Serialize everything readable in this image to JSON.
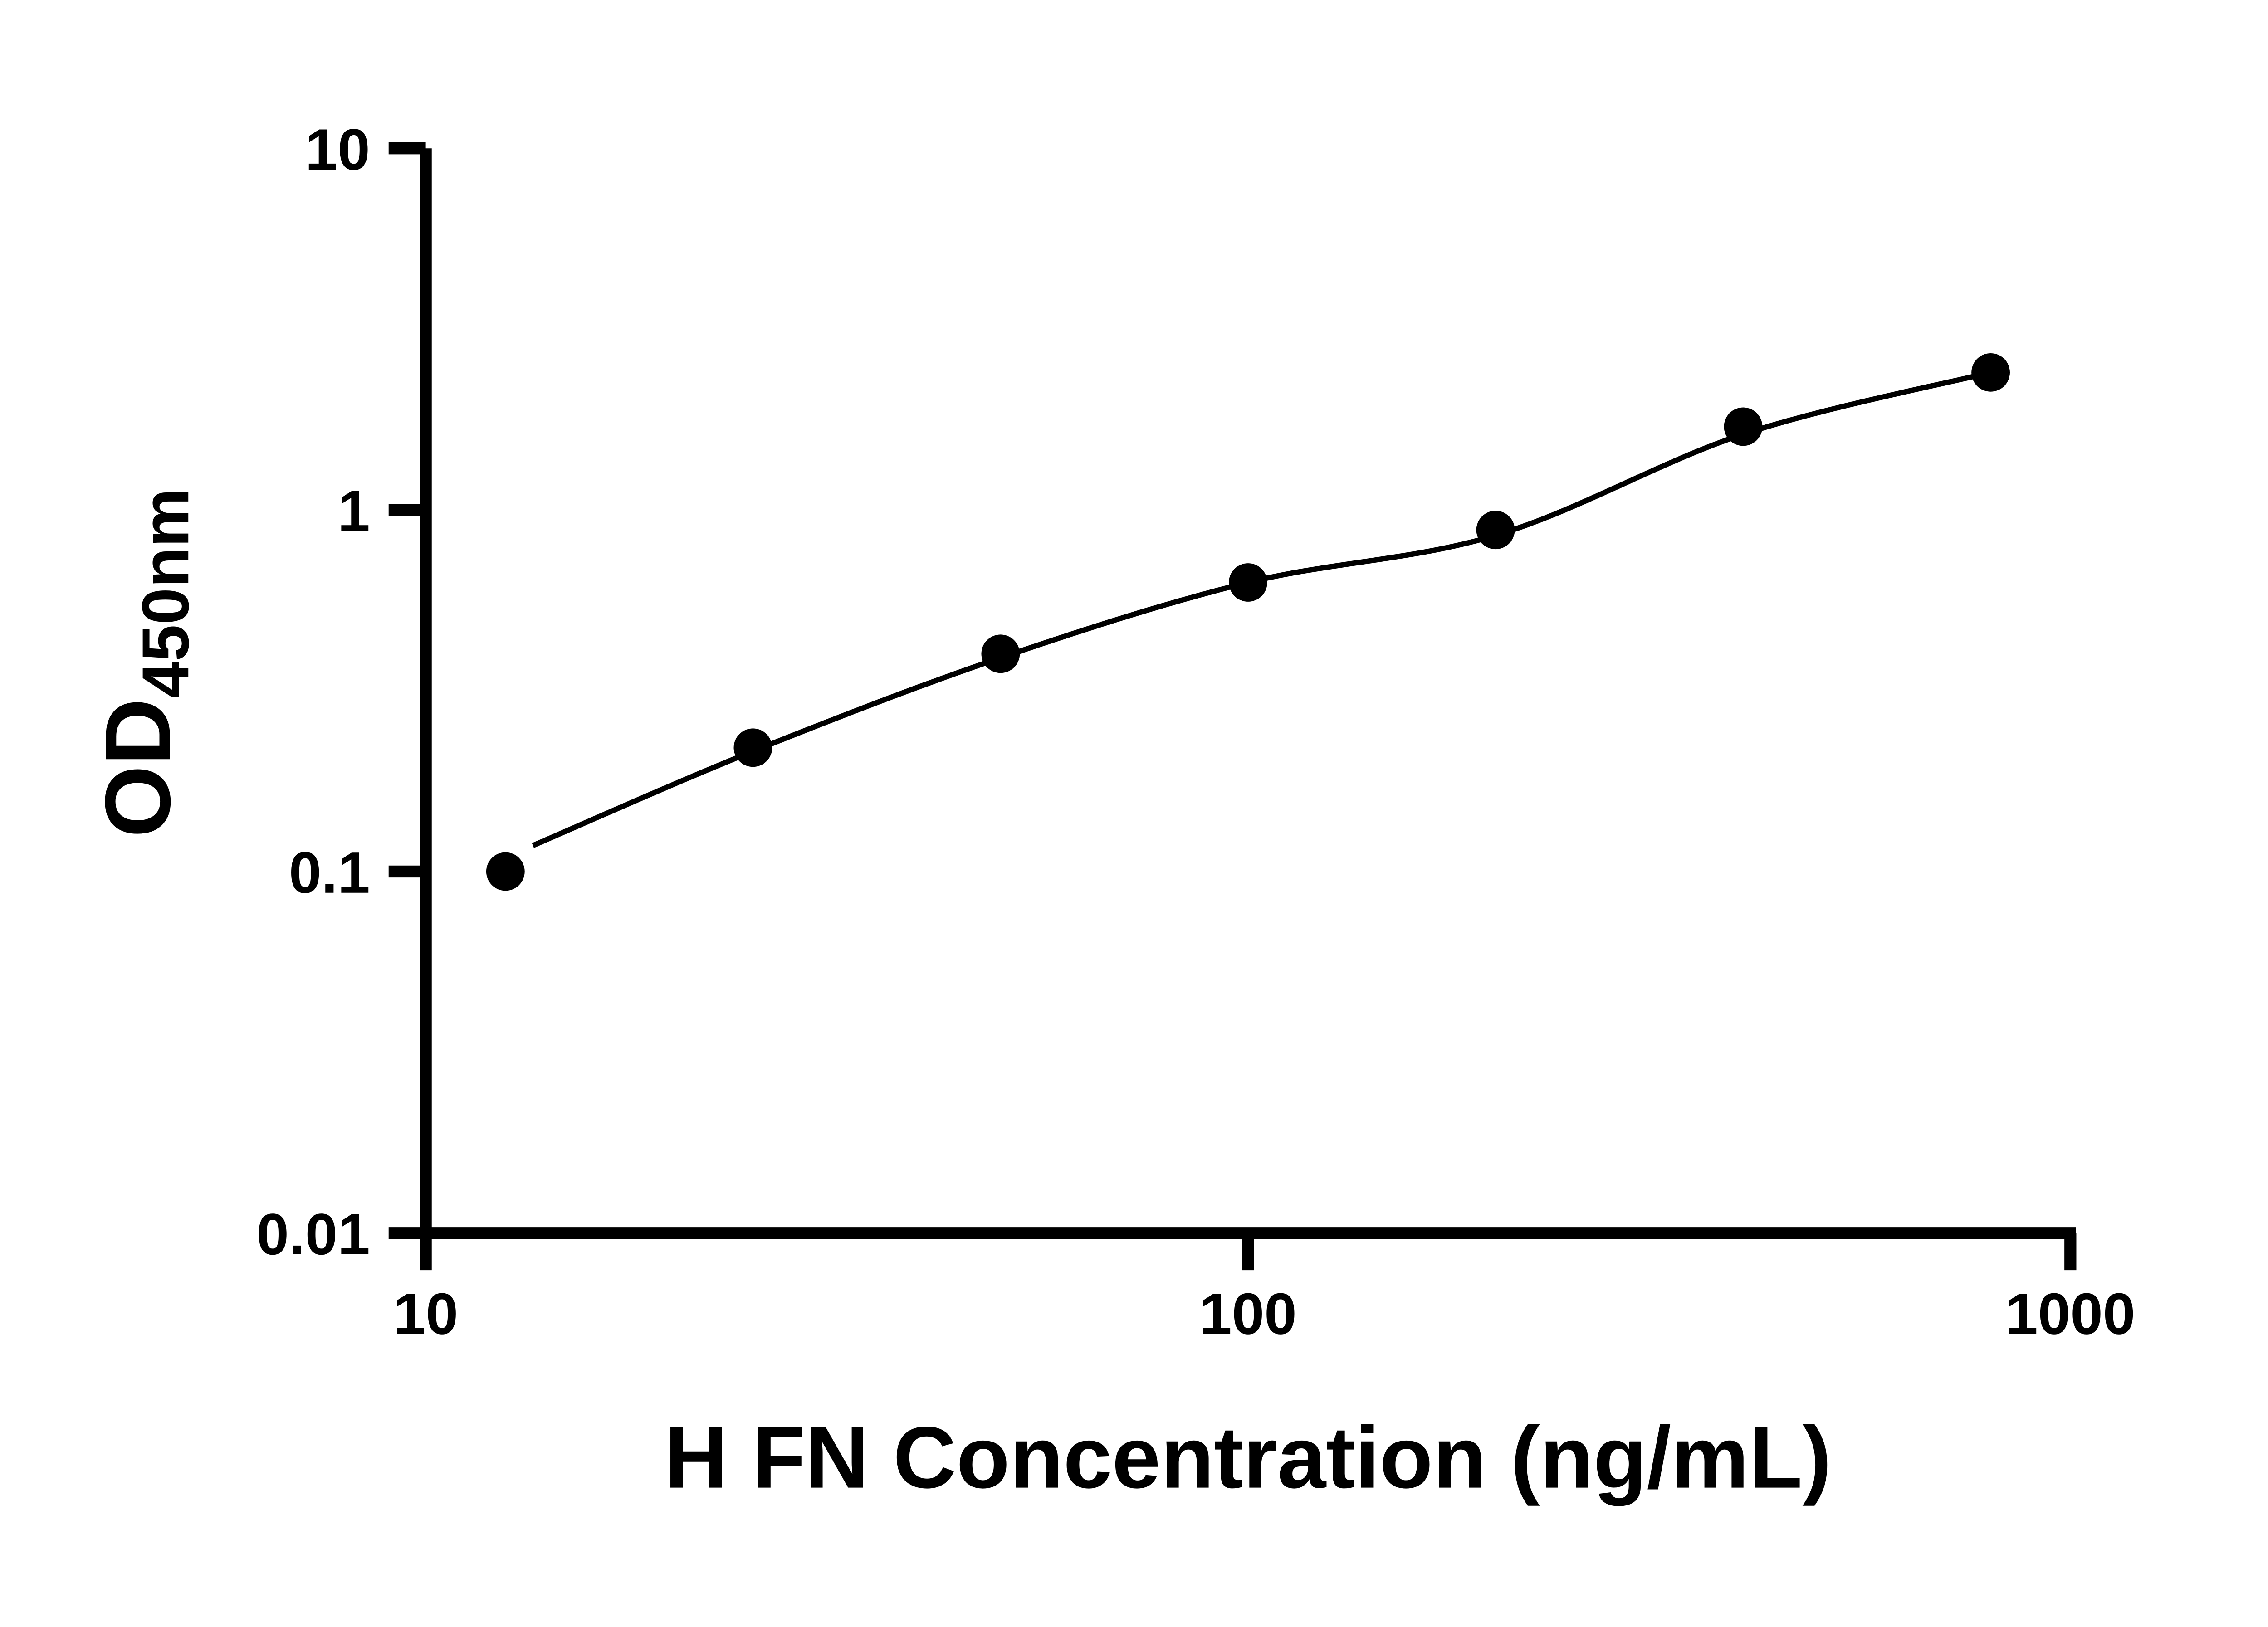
{
  "page": {
    "background_color": "#ffffff",
    "foreground_color": "#000000"
  },
  "chart_data": {
    "type": "scatter",
    "title": "",
    "xlabel": "H FN Concentration (ng/mL)",
    "ylabel": "OD450nm",
    "ylabel_main": "OD",
    "ylabel_sub": "450nm",
    "x_scale": "log",
    "y_scale": "log",
    "xlim": [
      10,
      1000
    ],
    "ylim": [
      0.01,
      10
    ],
    "x_ticks": [
      10,
      100,
      1000
    ],
    "x_tick_labels": [
      "10",
      "100",
      "1000"
    ],
    "y_ticks": [
      0.01,
      0.1,
      1,
      10
    ],
    "y_tick_labels": [
      "0.01",
      "0.1",
      "1",
      "10"
    ],
    "grid": false,
    "legend": "none",
    "marker_color": "#000000",
    "line_color": "#000000",
    "points": {
      "x": [
        12.5,
        25,
        50,
        100,
        200,
        400,
        800
      ],
      "y": [
        0.1,
        0.22,
        0.4,
        0.63,
        0.88,
        1.7,
        2.4
      ]
    },
    "fit_curve": {
      "x": [
        13.5,
        25,
        50,
        100,
        200,
        400,
        800
      ],
      "y": [
        0.118,
        0.215,
        0.39,
        0.63,
        0.85,
        1.62,
        2.4
      ]
    }
  }
}
